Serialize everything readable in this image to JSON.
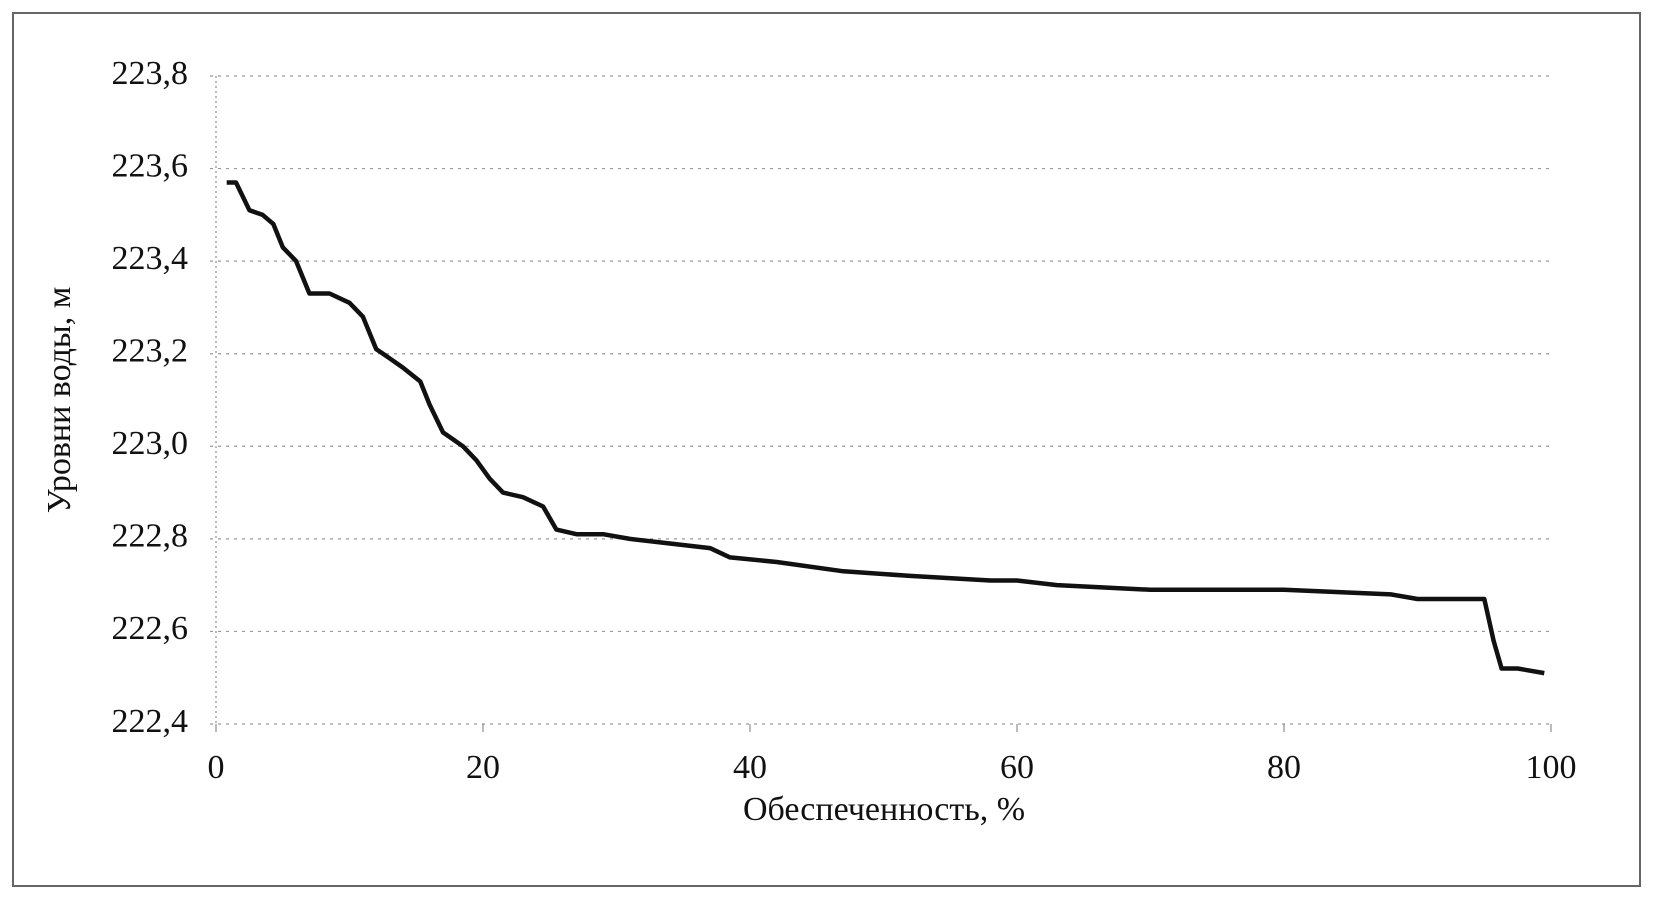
{
  "chart_data": {
    "type": "line",
    "xlabel": "Обеспеченность, %",
    "ylabel": "Уровни воды, м",
    "xlim": [
      0,
      100
    ],
    "xticks": [
      0,
      20,
      40,
      60,
      80,
      100
    ],
    "ylim": [
      222.4,
      223.8
    ],
    "yticks": [
      {
        "value": 222.4,
        "label": "222,4"
      },
      {
        "value": 222.6,
        "label": "222,6"
      },
      {
        "value": 222.8,
        "label": "222,8"
      },
      {
        "value": 223.0,
        "label": "223,0"
      },
      {
        "value": 223.2,
        "label": "223,2"
      },
      {
        "value": 223.4,
        "label": "223,4"
      },
      {
        "value": 223.6,
        "label": "223,6"
      },
      {
        "value": 223.8,
        "label": "223,8"
      }
    ],
    "grid": true,
    "series": [
      {
        "color": "#111111",
        "x": [
          0.8,
          1.5,
          2.5,
          3.5,
          4.3,
          5,
          6,
          7,
          8.5,
          10,
          11,
          12,
          13,
          14,
          15.3,
          16,
          17,
          18.5,
          19.5,
          20.5,
          21.5,
          23,
          24.5,
          25.5,
          27,
          29,
          31,
          34,
          37,
          38.5,
          42,
          47,
          52,
          58,
          60,
          63,
          70,
          80,
          88,
          90,
          95,
          95.7,
          96.3,
          97.5,
          99.5
        ],
        "values": [
          223.57,
          223.57,
          223.51,
          223.5,
          223.48,
          223.43,
          223.4,
          223.33,
          223.33,
          223.31,
          223.28,
          223.21,
          223.19,
          223.17,
          223.14,
          223.09,
          223.03,
          223.0,
          222.97,
          222.93,
          222.9,
          222.89,
          222.87,
          222.82,
          222.81,
          222.81,
          222.8,
          222.79,
          222.78,
          222.76,
          222.75,
          222.73,
          222.72,
          222.71,
          222.71,
          222.7,
          222.69,
          222.69,
          222.68,
          222.67,
          222.67,
          222.58,
          222.52,
          222.52,
          222.51
        ]
      }
    ]
  }
}
